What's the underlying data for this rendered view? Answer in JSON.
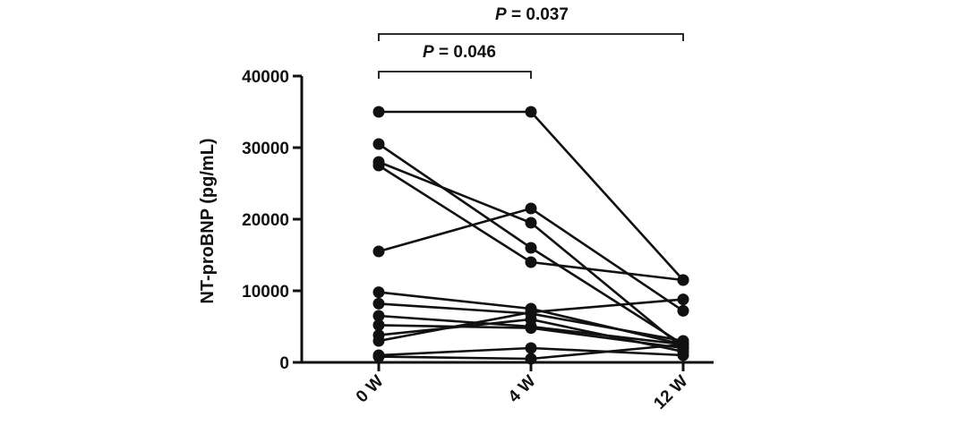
{
  "chart_data": {
    "type": "line",
    "title": "",
    "xlabel": "",
    "ylabel": "NT-proBNP (pg/mL)",
    "categories": [
      "0 W",
      "4 W",
      "12 W"
    ],
    "ylim": [
      0,
      40000
    ],
    "yticks": [
      0,
      10000,
      20000,
      30000,
      40000
    ],
    "ytick_labels": [
      "0",
      "10000",
      "20000",
      "30000",
      "40000"
    ],
    "grid": false,
    "legend": "none",
    "marker": "circle",
    "color": "#111111",
    "series": [
      {
        "values": [
          35000,
          35000,
          11500
        ]
      },
      {
        "values": [
          30500,
          16000,
          2500
        ]
      },
      {
        "values": [
          28000,
          19500,
          2000
        ]
      },
      {
        "values": [
          27500,
          14000,
          11500
        ]
      },
      {
        "values": [
          15500,
          21500,
          7200
        ]
      },
      {
        "values": [
          9800,
          7500,
          2500
        ]
      },
      {
        "values": [
          8200,
          6800,
          3000
        ]
      },
      {
        "values": [
          6500,
          5000,
          2500
        ]
      },
      {
        "values": [
          5200,
          4800,
          2000
        ]
      },
      {
        "values": [
          3800,
          6000,
          1500
        ]
      },
      {
        "values": [
          3000,
          7000,
          8800
        ]
      },
      {
        "values": [
          1000,
          2000,
          1000
        ]
      },
      {
        "values": [
          800,
          500,
          2500
        ]
      }
    ],
    "annotations": [
      {
        "prefix": "P",
        "text": "= 0.037",
        "from": "0 W",
        "to": "12 W"
      },
      {
        "prefix": "P",
        "text": "= 0.046",
        "from": "0 W",
        "to": "4 W"
      }
    ]
  }
}
